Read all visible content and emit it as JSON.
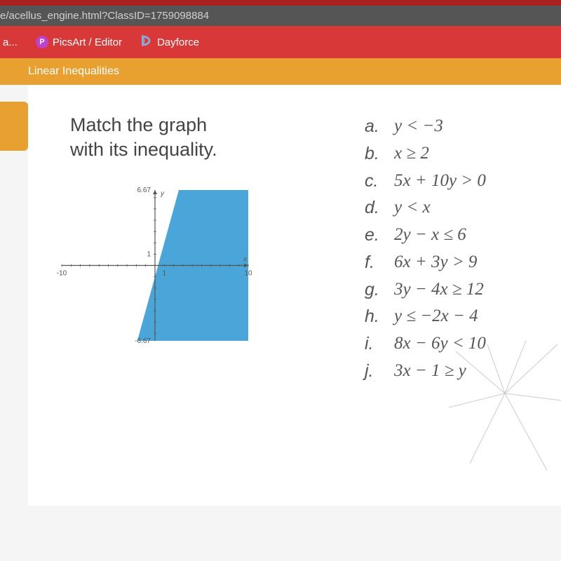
{
  "url_fragment": "e/acellus_engine.html?ClassID=1759098884",
  "bookmarks": {
    "item0_label": "a...",
    "item1_label": "PicsArt / Editor",
    "item1_icon_bg": "#c040d0",
    "item1_icon_letter": "P",
    "item2_label": "Dayforce",
    "item2_icon_color": "#4a6aa0"
  },
  "lesson_title": "Linear Inequalities",
  "prompt_line1": "Match the graph",
  "prompt_line2": "with its inequality.",
  "answers": [
    {
      "letter": "a.",
      "expr": "y < −3"
    },
    {
      "letter": "b.",
      "expr": "x ≥ 2"
    },
    {
      "letter": "c.",
      "expr": "5x + 10y > 0"
    },
    {
      "letter": "d.",
      "expr": "y < x"
    },
    {
      "letter": "e.",
      "expr": "2y − x ≤ 6"
    },
    {
      "letter": "f.",
      "expr": "6x + 3y > 9"
    },
    {
      "letter": "g.",
      "expr": "3y − 4x ≥ 12"
    },
    {
      "letter": "h.",
      "expr": "y ≤ −2x − 4"
    },
    {
      "letter": "i.",
      "expr": "8x − 6y < 10"
    },
    {
      "letter": "j.",
      "expr": "3x − 1 ≥ y"
    }
  ],
  "graph": {
    "xlim": [
      -10,
      10
    ],
    "ylim": [
      -6.67,
      6.67
    ],
    "x_tick_step": 1,
    "y_tick_step": 1,
    "x_tick_labels": [
      {
        "v": -10,
        "t": "-10"
      },
      {
        "v": 1,
        "t": "1"
      },
      {
        "v": 10,
        "t": "10"
      }
    ],
    "y_tick_labels": [
      {
        "v": 6.67,
        "t": "6.67"
      },
      {
        "v": 1,
        "t": "1"
      },
      {
        "v": -6.67,
        "t": "-6.67"
      }
    ],
    "axis_labels": {
      "x": "x",
      "y": "y"
    },
    "axis_color": "#555555",
    "tick_color": "#555555",
    "label_color": "#555555",
    "label_fontsize": 10,
    "background_color": "#ffffff",
    "shaded_region": {
      "type": "polygon",
      "description": "half-plane for 3x - 1 >= y, boundary solid, shaded below-right",
      "boundary_line": {
        "slope": 3,
        "intercept": -1,
        "style": "solid",
        "width": 2,
        "color": "#2a7aa8"
      },
      "fill_color": "#4aa5d8",
      "fill_opacity": 1.0,
      "vertices_graph_coords": [
        [
          -1.89,
          -6.67
        ],
        [
          2.556,
          6.67
        ],
        [
          10,
          6.67
        ],
        [
          10,
          -6.67
        ]
      ]
    }
  },
  "colors": {
    "red_bar": "#d93838",
    "dark_red": "#a82020",
    "url_bg": "#555555",
    "orange": "#e8a030",
    "content_bg": "#ffffff",
    "text": "#444444"
  }
}
